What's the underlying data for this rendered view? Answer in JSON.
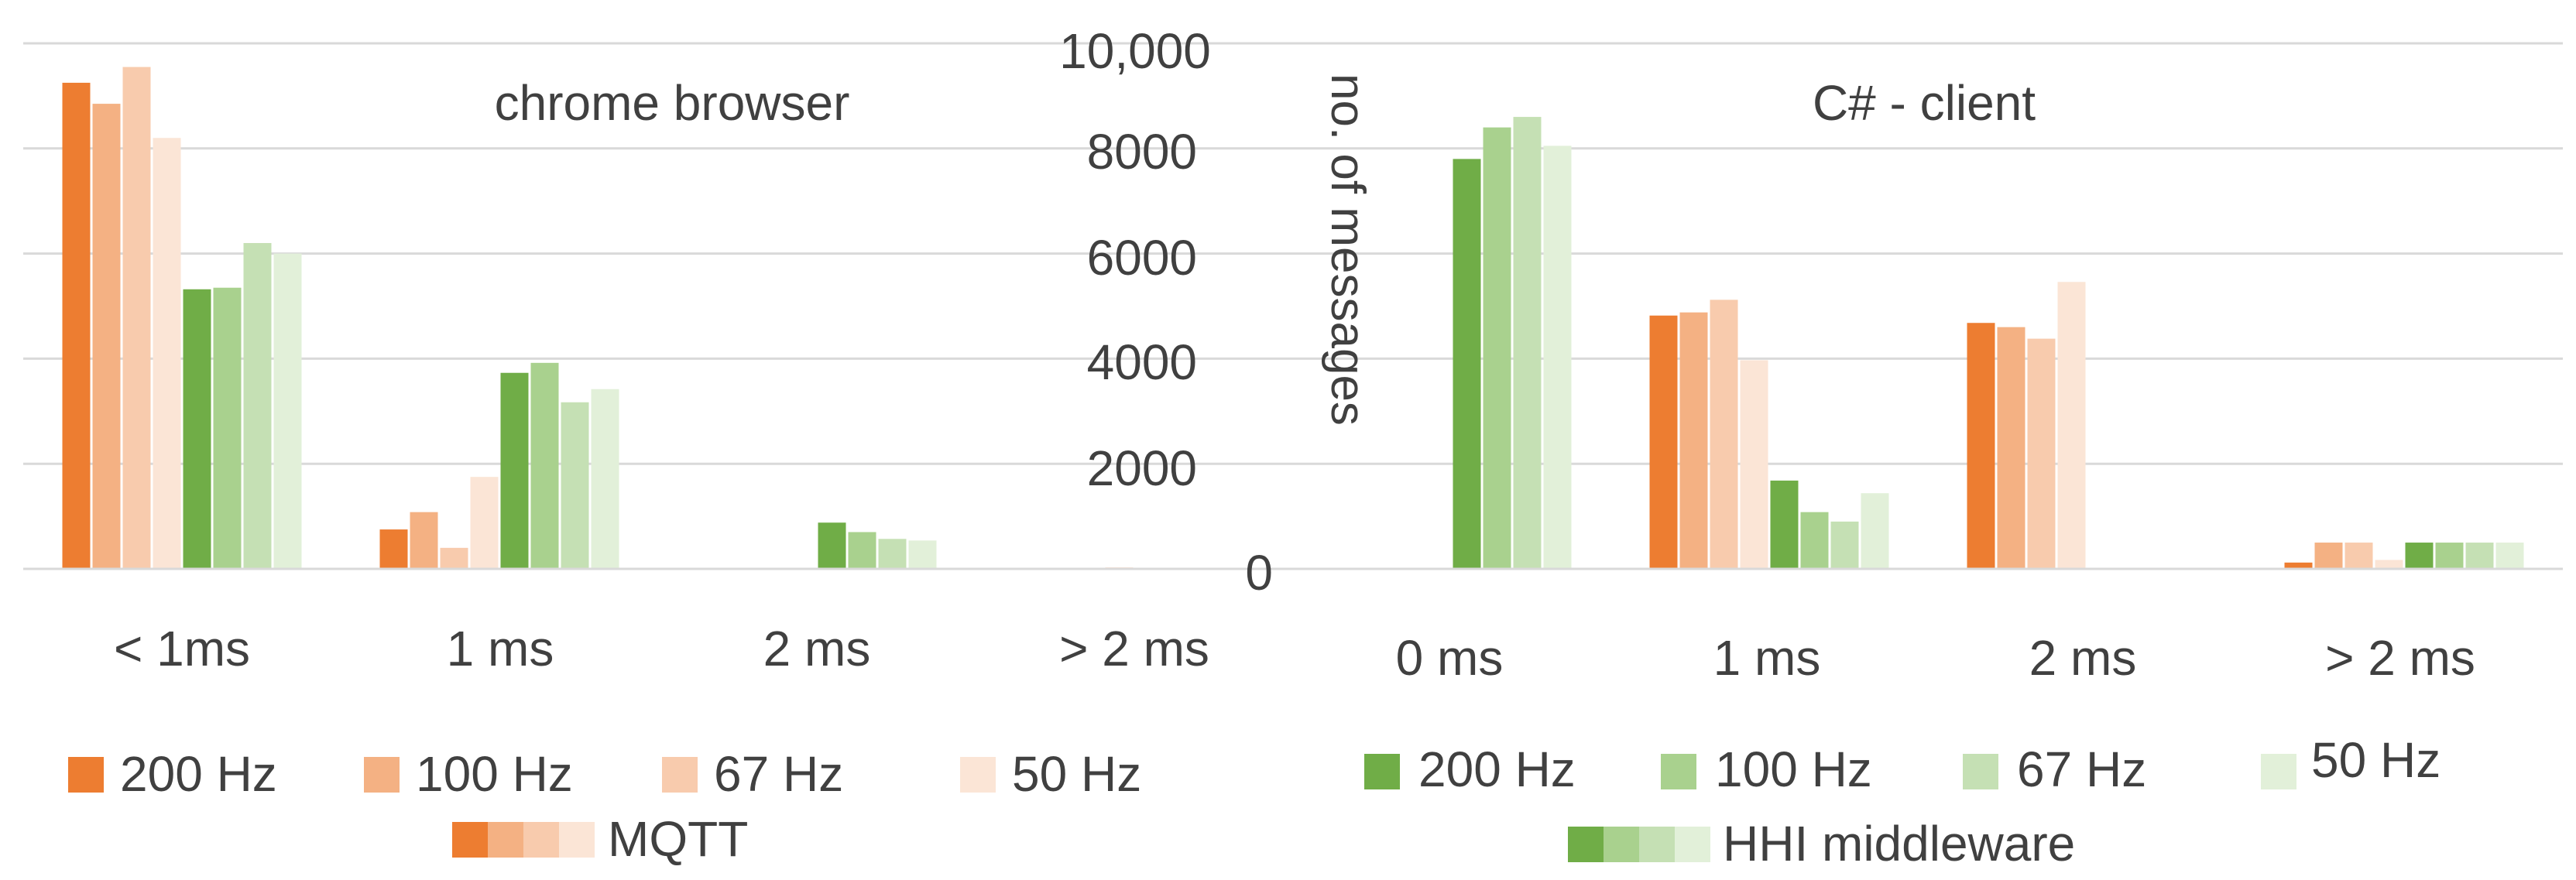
{
  "chart_data": [
    {
      "type": "bar",
      "title": "chrome browser",
      "categories": [
        "< 1ms",
        "1 ms",
        "2 ms",
        "> 2 ms"
      ],
      "ylim": [
        0,
        10000
      ],
      "series": [
        {
          "name": "200 Hz",
          "group": "MQTT",
          "color": "#ED7D31",
          "values": [
            9250,
            750,
            0,
            0
          ]
        },
        {
          "name": "100 Hz",
          "group": "MQTT",
          "color": "#F4B183",
          "values": [
            8850,
            1080,
            0,
            0
          ]
        },
        {
          "name": "67 Hz",
          "group": "MQTT",
          "color": "#F8CBAD",
          "values": [
            9550,
            400,
            0,
            0
          ]
        },
        {
          "name": "50 Hz",
          "group": "MQTT",
          "color": "#FBE5D6",
          "values": [
            8200,
            1750,
            0,
            30
          ]
        },
        {
          "name": "200 Hz",
          "group": "HHI middleware",
          "color": "#70AD47",
          "values": [
            5320,
            3730,
            880,
            0
          ]
        },
        {
          "name": "100 Hz",
          "group": "HHI middleware",
          "color": "#A9D18E",
          "values": [
            5350,
            3920,
            700,
            0
          ]
        },
        {
          "name": "67 Hz",
          "group": "HHI middleware",
          "color": "#C5E0B4",
          "values": [
            6200,
            3170,
            570,
            0
          ]
        },
        {
          "name": "50 Hz",
          "group": "HHI middleware",
          "color": "#E2F0D9",
          "values": [
            6000,
            3420,
            540,
            0
          ]
        }
      ]
    },
    {
      "type": "bar",
      "title": "C# - client",
      "categories": [
        "0 ms",
        "1 ms",
        "2 ms",
        "> 2 ms"
      ],
      "ylim": [
        0,
        10000
      ],
      "ylabel": "no. of messages",
      "yticks": [
        "10,000",
        "8000",
        "6000",
        "4000",
        "2000",
        "0"
      ],
      "series": [
        {
          "name": "200 Hz",
          "group": "MQTT",
          "color": "#ED7D31",
          "values": [
            0,
            4820,
            4680,
            120
          ]
        },
        {
          "name": "100 Hz",
          "group": "MQTT",
          "color": "#F4B183",
          "values": [
            0,
            4880,
            4600,
            500
          ]
        },
        {
          "name": "67 Hz",
          "group": "MQTT",
          "color": "#F8CBAD",
          "values": [
            0,
            5120,
            4380,
            500
          ]
        },
        {
          "name": "50 Hz",
          "group": "MQTT",
          "color": "#FBE5D6",
          "values": [
            0,
            3970,
            5460,
            170
          ]
        },
        {
          "name": "200 Hz",
          "group": "HHI middleware",
          "color": "#70AD47",
          "values": [
            7800,
            1680,
            0,
            500
          ]
        },
        {
          "name": "100 Hz",
          "group": "HHI middleware",
          "color": "#A9D18E",
          "values": [
            8400,
            1080,
            0,
            500
          ]
        },
        {
          "name": "67 Hz",
          "group": "HHI middleware",
          "color": "#C5E0B4",
          "values": [
            8600,
            900,
            0,
            500
          ]
        },
        {
          "name": "50 Hz",
          "group": "HHI middleware",
          "color": "#E2F0D9",
          "values": [
            8050,
            1440,
            0,
            500
          ]
        }
      ]
    }
  ],
  "legends": {
    "mqtt": {
      "group_label": "MQTT",
      "items": [
        {
          "label": "200 Hz",
          "color": "#ED7D31"
        },
        {
          "label": "100 Hz",
          "color": "#F4B183"
        },
        {
          "label": "67 Hz",
          "color": "#F8CBAD"
        },
        {
          "label": "50 Hz",
          "color": "#FBE5D6"
        }
      ]
    },
    "hhi": {
      "group_label": "HHI middleware",
      "items": [
        {
          "label": "200 Hz",
          "color": "#70AD47"
        },
        {
          "label": "100 Hz",
          "color": "#A9D18E"
        },
        {
          "label": "67 Hz",
          "color": "#C5E0B4"
        },
        {
          "label": "50 Hz",
          "color": "#E2F0D9"
        }
      ]
    }
  }
}
